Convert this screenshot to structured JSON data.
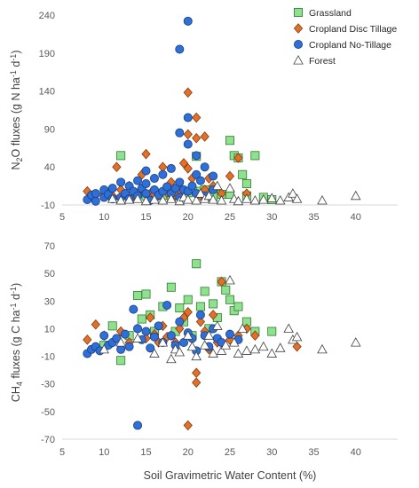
{
  "styles": {
    "Grassland": {
      "marker": "square",
      "fill": "#8fe08f",
      "stroke": "#2f7d2f"
    },
    "Cropland Disc Tillage": {
      "marker": "diamond",
      "fill": "#e0702a",
      "stroke": "#8a3a0e"
    },
    "Cropland No-Tillage": {
      "marker": "circle",
      "fill": "#2f6fd6",
      "stroke": "#163f85"
    },
    "Forest": {
      "marker": "triangle",
      "fill": "#ffffff",
      "stroke": "#404040"
    }
  },
  "chart_data": [
    {
      "type": "scatter",
      "panel": "top",
      "xlabel": "",
      "ylabel": "N2O fluxes (g N ha-1 d-1)",
      "ylabel_main": "N",
      "ylabel_sub": "2",
      "ylabel_rest": "O fluxes (g N ha",
      "ylabel_exp1": "-1",
      "ylabel_mid": " d",
      "ylabel_exp2": "-1",
      "ylabel_end": ")",
      "xlim": [
        5,
        45
      ],
      "ylim": [
        -10,
        240
      ],
      "x_ticks": [
        "5",
        "10",
        "15",
        "20",
        "25",
        "30",
        "35",
        "40"
      ],
      "y_ticks": [
        "-10",
        "40",
        "90",
        "140",
        "190",
        "240"
      ],
      "legend": {
        "position": "top-right",
        "entries": [
          "Grassland",
          "Cropland Disc Tillage",
          "Cropland No-Tillage",
          "Forest"
        ]
      },
      "series": [
        {
          "name": "Grassland",
          "x": [
            12,
            15,
            17,
            18,
            20,
            21,
            21.5,
            22,
            23,
            24,
            25,
            25,
            25.5,
            26,
            26.5,
            27,
            27,
            28,
            29,
            30
          ],
          "y": [
            55,
            2,
            3,
            0,
            6,
            54,
            8,
            10,
            1,
            4,
            75,
            4,
            55,
            52,
            30,
            18,
            2,
            55,
            0,
            -3
          ]
        },
        {
          "name": "Cropland Disc Tillage",
          "x": [
            8,
            9,
            10,
            11,
            11.5,
            12,
            13,
            13.5,
            14,
            14.5,
            15,
            15.5,
            16,
            16.5,
            17,
            17.5,
            18,
            18.5,
            19,
            19.5,
            20,
            20,
            20,
            20.5,
            21,
            21,
            21.5,
            22,
            22,
            22.5,
            23,
            24,
            25,
            26,
            27
          ],
          "y": [
            8,
            3,
            5,
            2,
            40,
            10,
            15,
            2,
            5,
            30,
            57,
            5,
            4,
            2,
            40,
            6,
            20,
            3,
            10,
            45,
            138,
            83,
            38,
            25,
            105,
            78,
            2,
            80,
            10,
            25,
            15,
            5,
            28,
            52,
            5
          ]
        },
        {
          "name": "Cropland No-Tillage",
          "x": [
            8,
            8.5,
            9,
            9,
            10,
            10,
            10.5,
            11,
            11,
            12,
            12,
            12.5,
            13,
            13,
            13.5,
            14,
            14,
            14.5,
            15,
            15,
            15,
            15.5,
            16,
            16,
            16.5,
            17,
            17,
            17.5,
            18,
            18,
            18.5,
            19,
            19,
            19,
            19,
            19.5,
            20,
            20,
            20,
            20,
            20.5,
            21,
            21,
            21,
            21.5,
            22,
            22,
            23,
            23
          ],
          "y": [
            -3,
            3,
            -5,
            5,
            0,
            10,
            4,
            -2,
            12,
            0,
            20,
            5,
            -2,
            15,
            8,
            2,
            22,
            12,
            35,
            5,
            18,
            -4,
            10,
            25,
            3,
            30,
            8,
            14,
            5,
            38,
            12,
            195,
            85,
            20,
            0,
            10,
            232,
            105,
            70,
            8,
            15,
            30,
            55,
            5,
            22,
            40,
            2,
            10,
            28
          ]
        },
        {
          "name": "Forest",
          "x": [
            11,
            12,
            13,
            14,
            15,
            16,
            17,
            18,
            19,
            19.5,
            20,
            21,
            21.5,
            22,
            22.5,
            23,
            23.5,
            24,
            25,
            25.5,
            26,
            27,
            28,
            29,
            30,
            31,
            32,
            32.5,
            33,
            36,
            40
          ],
          "y": [
            -2,
            -4,
            -3,
            -2,
            -5,
            -3,
            -4,
            -2,
            -5,
            0,
            -3,
            -4,
            5,
            -2,
            2,
            -3,
            15,
            -4,
            12,
            -2,
            -5,
            -2,
            -4,
            -3,
            -1,
            -4,
            0,
            5,
            -2,
            -4,
            2
          ]
        }
      ]
    },
    {
      "type": "scatter",
      "panel": "bottom",
      "xlabel": "Soil Gravimetric Water Content (%)",
      "ylabel": "CH4 fluxes (g C ha-1 d-1)",
      "ylabel_main": "CH",
      "ylabel_sub": "4",
      "ylabel_rest": " fluxes (g C ha",
      "ylabel_exp1": "-1",
      "ylabel_mid": " d",
      "ylabel_exp2": "-1",
      "ylabel_end": ")",
      "xlim": [
        5,
        45
      ],
      "ylim": [
        -70,
        70
      ],
      "x_ticks": [
        "5",
        "10",
        "15",
        "20",
        "25",
        "30",
        "35",
        "40"
      ],
      "y_ticks": [
        "-70",
        "-50",
        "-30",
        "-10",
        "10",
        "30",
        "50",
        "70"
      ],
      "series": [
        {
          "name": "Grassland",
          "x": [
            10,
            11,
            12,
            13,
            14,
            14.5,
            15,
            15.5,
            16,
            17,
            18,
            18.5,
            19,
            19.5,
            20,
            20.5,
            21,
            21.5,
            22,
            22.5,
            23,
            23.5,
            24,
            24.5,
            25,
            25.5,
            26,
            27,
            28,
            30
          ],
          "y": [
            -2,
            12,
            -13,
            5,
            34,
            17,
            35,
            20,
            8,
            26,
            40,
            8,
            25,
            15,
            31,
            5,
            57,
            26,
            37,
            10,
            28,
            18,
            44,
            38,
            31,
            23,
            26,
            15,
            8,
            8
          ]
        },
        {
          "name": "Cropland Disc Tillage",
          "x": [
            8,
            9,
            10,
            11,
            12,
            13,
            14,
            15,
            15.5,
            16,
            16.5,
            17,
            17.5,
            18,
            18.5,
            19,
            19.5,
            20,
            20,
            20.5,
            21,
            21,
            21.5,
            22,
            22.5,
            23,
            23.5,
            24,
            25,
            26,
            27,
            28,
            33
          ],
          "y": [
            2,
            13,
            5,
            0,
            8,
            0,
            10,
            3,
            18,
            6,
            0,
            12,
            4,
            5,
            0,
            10,
            18,
            22,
            -60,
            3,
            -22,
            -29,
            15,
            8,
            -5,
            20,
            0,
            44,
            2,
            5,
            10,
            5,
            -3
          ]
        },
        {
          "name": "Cropland No-Tillage",
          "x": [
            8,
            8.5,
            9,
            9.5,
            10,
            10.5,
            11,
            11.5,
            12,
            12.5,
            13,
            13.5,
            14,
            14,
            14.5,
            15,
            15.5,
            16,
            16.5,
            17,
            17.5,
            18,
            18.5,
            19,
            19.5,
            20,
            20.5,
            21,
            21.5,
            22,
            22.5,
            23,
            23.5,
            24,
            25,
            26
          ],
          "y": [
            -8,
            -5,
            -3,
            -6,
            5,
            -2,
            0,
            3,
            -5,
            6,
            -3,
            24,
            10,
            -60,
            2,
            8,
            -4,
            4,
            12,
            0,
            27,
            5,
            -2,
            15,
            0,
            7,
            3,
            -6,
            20,
            5,
            -3,
            10,
            3,
            0,
            6,
            2
          ]
        },
        {
          "name": "Forest",
          "x": [
            10,
            12,
            14,
            16,
            17,
            18,
            18.5,
            19,
            20,
            20.5,
            21,
            22,
            22.5,
            23,
            23.5,
            24,
            24.5,
            25,
            25.5,
            26,
            26.5,
            27,
            28,
            29,
            30,
            31,
            32,
            32.5,
            33,
            36,
            40
          ],
          "y": [
            -5,
            0,
            3,
            -8,
            0,
            -12,
            -5,
            -7,
            5,
            -3,
            -10,
            -2,
            5,
            -8,
            12,
            -6,
            -2,
            45,
            0,
            -8,
            10,
            -6,
            -5,
            -3,
            -8,
            -4,
            10,
            2,
            4,
            -5,
            0
          ]
        }
      ]
    }
  ]
}
